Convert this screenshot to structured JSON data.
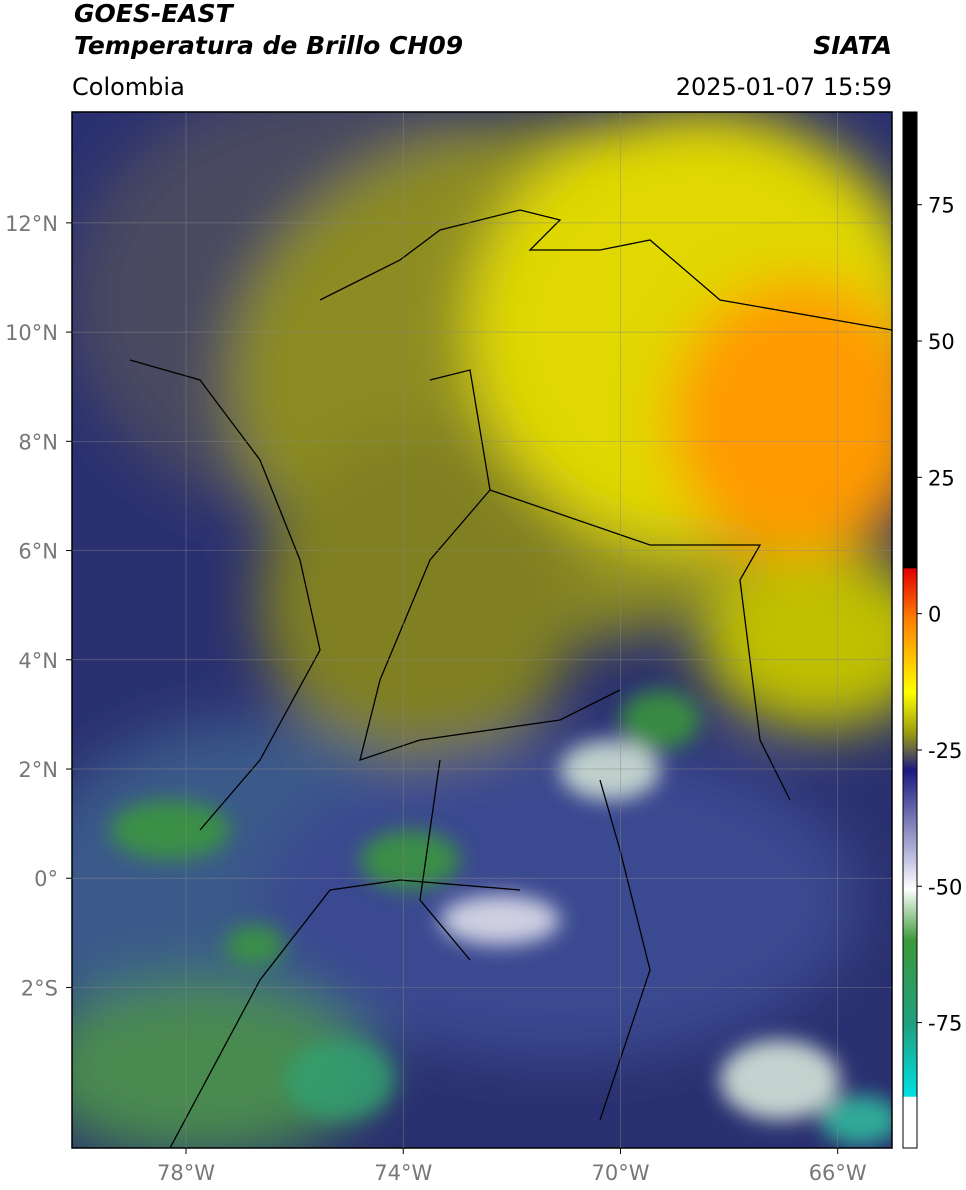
{
  "header": {
    "title": "GOES-EAST",
    "subtitle": "Temperatura de Brillo CH09",
    "source": "SIATA",
    "region": "Colombia",
    "datetime": "2025-01-07 15:59"
  },
  "map": {
    "xlim": [
      -80.1,
      -65.0
    ],
    "ylim": [
      -4.94,
      14.03
    ],
    "grid": true,
    "xticks": [
      {
        "value": -78,
        "label": "78°W"
      },
      {
        "value": -74,
        "label": "74°W"
      },
      {
        "value": -70,
        "label": "70°W"
      },
      {
        "value": -66,
        "label": "66°W"
      }
    ],
    "yticks": [
      {
        "value": 12,
        "label": "12°N"
      },
      {
        "value": 10,
        "label": "10°N"
      },
      {
        "value": 8,
        "label": "8°N"
      },
      {
        "value": 6,
        "label": "6°N"
      },
      {
        "value": 4,
        "label": "4°N"
      },
      {
        "value": 2,
        "label": "2°N"
      },
      {
        "value": 0,
        "label": "0°"
      },
      {
        "value": -2,
        "label": "2°S"
      }
    ]
  },
  "colorbar": {
    "lim": [
      -98,
      92
    ],
    "ticks": [
      75,
      50,
      25,
      0,
      -25,
      -50,
      -75
    ]
  }
}
